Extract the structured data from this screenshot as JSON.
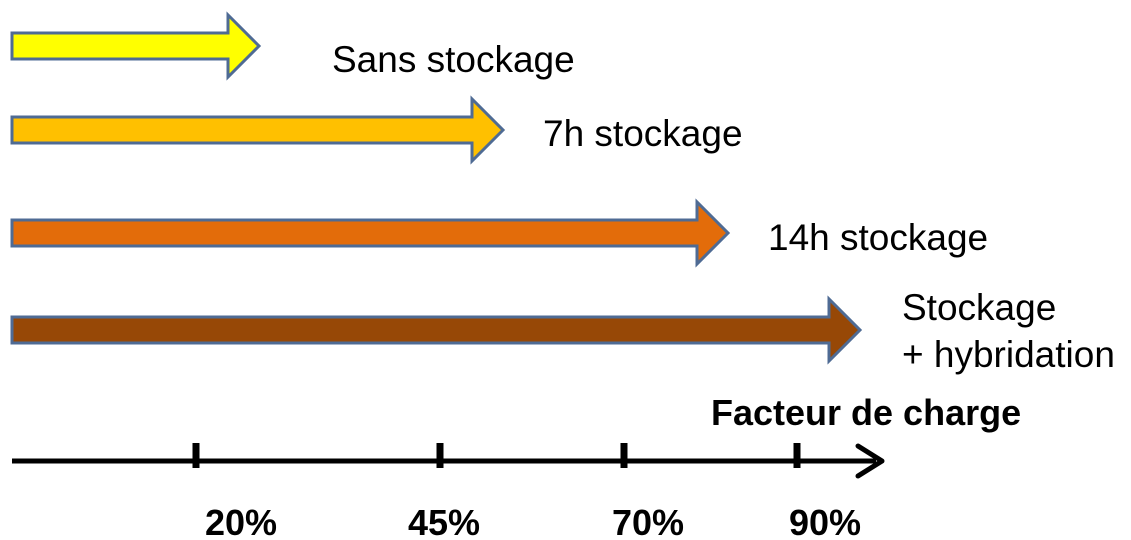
{
  "arrows": [
    {
      "label_lines": [
        "Sans stockage"
      ],
      "value_pct": 20,
      "color": "#FFFF00"
    },
    {
      "label_lines": [
        "7h stockage"
      ],
      "value_pct": 45,
      "color": "#FFC000"
    },
    {
      "label_lines": [
        "14h stockage"
      ],
      "value_pct": 70,
      "color": "#E36C0A"
    },
    {
      "label_lines": [
        "Stockage",
        "+ hybridation"
      ],
      "value_pct": 90,
      "color": "#974806"
    }
  ],
  "axis": {
    "title": "Facteur de charge",
    "ticks": [
      "20%",
      "45%",
      "70%",
      "90%"
    ]
  },
  "colors": {
    "arrow_outline": "#4F6B94",
    "axis": "#000000"
  }
}
